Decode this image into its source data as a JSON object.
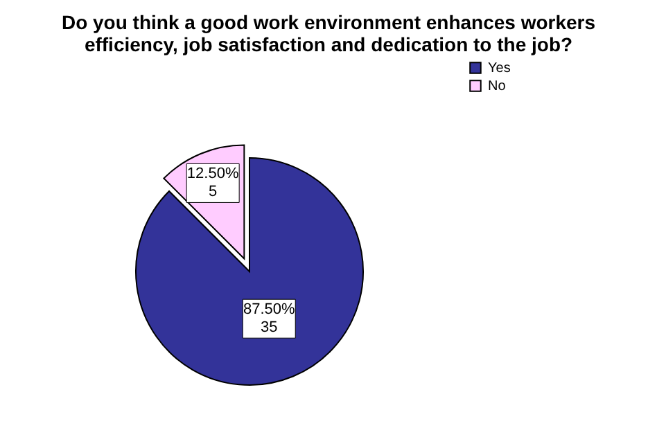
{
  "chart_data": {
    "type": "pie",
    "title": [
      "Do you think a good work environment enhances workers",
      "efficiency, job satisfaction and dedication to the job?"
    ],
    "categories": [
      "Yes",
      "No"
    ],
    "values": [
      35,
      5
    ],
    "colors": [
      "#333399",
      "#ffccff"
    ],
    "value_labels": [
      "87.50%\n35",
      "12.50%\n5"
    ],
    "legend": "top right"
  }
}
